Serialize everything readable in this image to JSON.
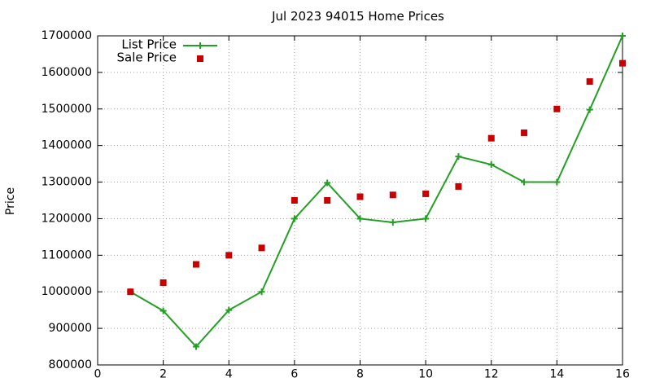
{
  "chart_data": {
    "type": "line",
    "title": "Jul 2023 94015 Home Prices",
    "xlabel": "",
    "ylabel": "Price",
    "xlim": [
      0,
      16
    ],
    "ylim": [
      800000,
      1700000
    ],
    "x_ticks": [
      "0",
      "2",
      "4",
      "6",
      "8",
      "10",
      "12",
      "14",
      "16"
    ],
    "y_ticks": [
      "800000",
      "900000",
      "1000000",
      "1100000",
      "1200000",
      "1300000",
      "1400000",
      "1500000",
      "1600000",
      "1700000"
    ],
    "grid": true,
    "legend_position": "top-left",
    "series": [
      {
        "name": "List Price",
        "style": "line+cross",
        "color": "#22a022",
        "x": [
          1,
          2,
          3,
          4,
          5,
          6,
          7,
          8,
          9,
          10,
          11,
          12,
          13,
          14,
          15,
          16
        ],
        "values": [
          1000000,
          948000,
          850000,
          950000,
          1000000,
          1200000,
          1298000,
          1200000,
          1190000,
          1200000,
          1370000,
          1348000,
          1300000,
          1300000,
          1498000,
          1700000
        ]
      },
      {
        "name": "Sale Price",
        "style": "square",
        "color": "#c80000",
        "x": [
          1,
          2,
          3,
          4,
          5,
          6,
          7,
          8,
          9,
          10,
          11,
          12,
          13,
          14,
          15,
          16
        ],
        "values": [
          1000000,
          1025000,
          1075000,
          1100000,
          1120000,
          1250000,
          1250000,
          1260000,
          1265000,
          1268000,
          1288000,
          1420000,
          1435000,
          1500000,
          1575000,
          1625000
        ]
      }
    ]
  }
}
